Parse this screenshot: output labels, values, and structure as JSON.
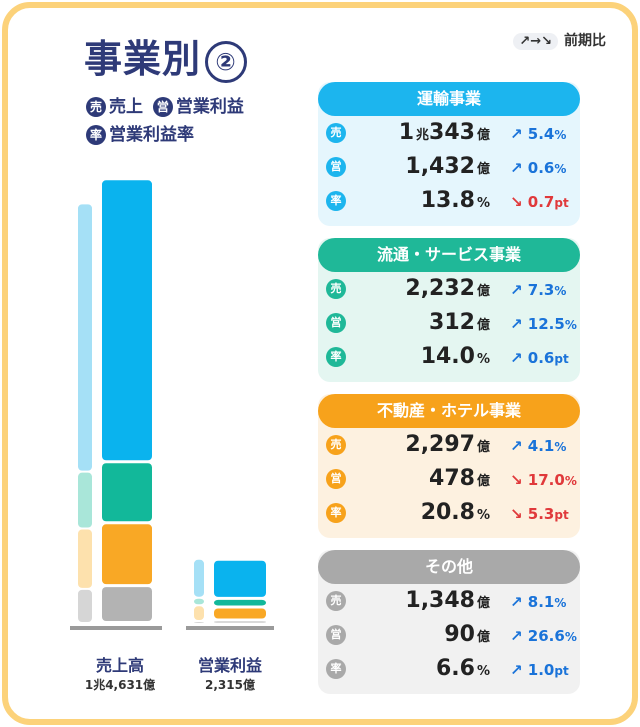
{
  "title": "事業別",
  "title_number": "②",
  "legend": {
    "sales_badge": "売",
    "sales": "売上",
    "profit_badge": "営",
    "profit": "営業利益",
    "rate_badge": "率",
    "rate": "営業利益率"
  },
  "prev_label": "前期比",
  "prev_arrows": "↗→↘",
  "chart_data": {
    "type": "bar",
    "stacked": true,
    "categories": [
      "売上高",
      "営業利益"
    ],
    "category_totals": [
      "1兆4,631億",
      "2,315億"
    ],
    "series": [
      {
        "name": "その他",
        "color": "#b3b3b3",
        "values": [
          1348,
          90
        ]
      },
      {
        "name": "不動産・ホテル事業",
        "color": "#f9a825",
        "values": [
          2297,
          478
        ]
      },
      {
        "name": "流通・サービス事業",
        "color": "#12b89a",
        "values": [
          2232,
          312
        ]
      },
      {
        "name": "運輸事業",
        "color": "#0ab3ee",
        "values": [
          10343,
          1432
        ]
      }
    ],
    "prev_series": [
      {
        "color": "#d6d6d6",
        "values": [
          1247,
          71
        ]
      },
      {
        "color": "#fde1ad",
        "values": [
          2206,
          576
        ]
      },
      {
        "color": "#a9e6d9",
        "values": [
          2080,
          277
        ]
      },
      {
        "color": "#a5e0f6",
        "values": [
          9808,
          1424
        ]
      }
    ],
    "unit": "億円"
  },
  "panels": [
    {
      "name": "運輸事業",
      "color": "#1cb5ee",
      "bg": "#e5f6fd",
      "rows": [
        {
          "badge": "売",
          "value": "1",
          "value_unit": "兆",
          "value2": "343",
          "value2_unit": "億",
          "dir": "↗",
          "change": "5.4",
          "change_unit": "%",
          "up": true
        },
        {
          "badge": "営",
          "value": "1,432",
          "value_unit": "億",
          "dir": "↗",
          "change": "0.6",
          "change_unit": "%",
          "up": true
        },
        {
          "badge": "率",
          "value": "13.8",
          "value_unit": "%",
          "dir": "↘",
          "change": "0.7",
          "change_unit": "pt",
          "up": false
        }
      ]
    },
    {
      "name": "流通・サービス事業",
      "color": "#1fb898",
      "bg": "#e4f6f1",
      "rows": [
        {
          "badge": "売",
          "value": "2,232",
          "value_unit": "億",
          "dir": "↗",
          "change": "7.3",
          "change_unit": "%",
          "up": true
        },
        {
          "badge": "営",
          "value": "312",
          "value_unit": "億",
          "dir": "↗",
          "change": "12.5",
          "change_unit": "%",
          "up": true
        },
        {
          "badge": "率",
          "value": "14.0",
          "value_unit": "%",
          "dir": "↗",
          "change": "0.6",
          "change_unit": "pt",
          "up": true
        }
      ]
    },
    {
      "name": "不動産・ホテル事業",
      "color": "#f7a21b",
      "bg": "#fdf1e0",
      "rows": [
        {
          "badge": "売",
          "value": "2,297",
          "value_unit": "億",
          "dir": "↗",
          "change": "4.1",
          "change_unit": "%",
          "up": true
        },
        {
          "badge": "営",
          "value": "478",
          "value_unit": "億",
          "dir": "↘",
          "change": "17.0",
          "change_unit": "%",
          "up": false
        },
        {
          "badge": "率",
          "value": "20.8",
          "value_unit": "%",
          "dir": "↘",
          "change": "5.3",
          "change_unit": "pt",
          "up": false
        }
      ]
    },
    {
      "name": "その他",
      "color": "#a9a9a9",
      "bg": "#f1f1f1",
      "rows": [
        {
          "badge": "売",
          "value": "1,348",
          "value_unit": "億",
          "dir": "↗",
          "change": "8.1",
          "change_unit": "%",
          "up": true
        },
        {
          "badge": "営",
          "value": "90",
          "value_unit": "億",
          "dir": "↗",
          "change": "26.6",
          "change_unit": "%",
          "up": true
        },
        {
          "badge": "率",
          "value": "6.6",
          "value_unit": "%",
          "dir": "↗",
          "change": "1.0",
          "change_unit": "pt",
          "up": true
        }
      ]
    }
  ]
}
